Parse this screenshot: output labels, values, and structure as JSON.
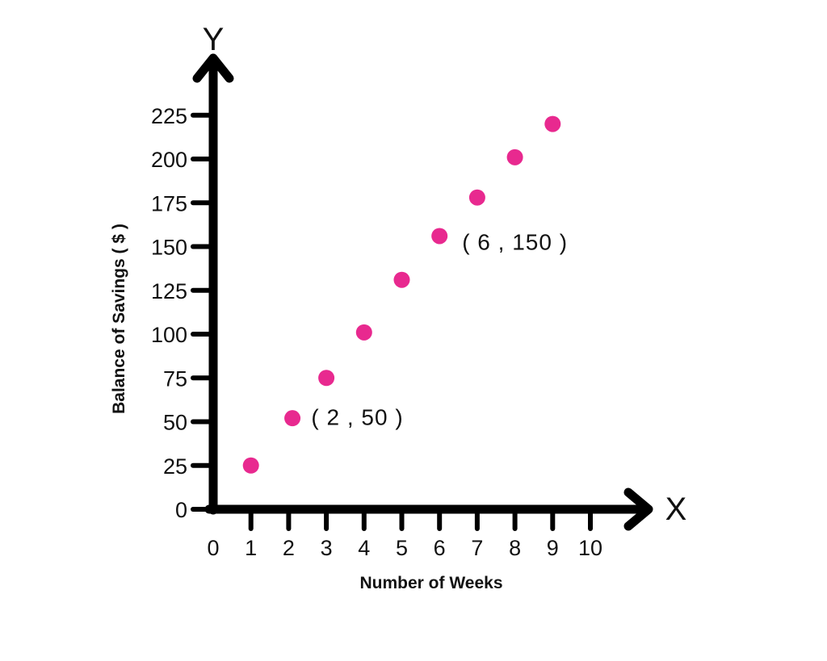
{
  "colors": {
    "point": "#E8298F",
    "axis": "#000000",
    "text": "#111111",
    "background": "#ffffff"
  },
  "chart_data": {
    "type": "scatter",
    "title": "",
    "xlabel": "Number of Weeks",
    "ylabel": "Balance of Savings ( $ )",
    "x_axis_letter": "X",
    "y_axis_letter": "Y",
    "xlim": [
      0,
      10
    ],
    "ylim": [
      0,
      225
    ],
    "x_ticks": [
      "0",
      "1",
      "2",
      "3",
      "4",
      "5",
      "6",
      "7",
      "8",
      "9",
      "10"
    ],
    "y_ticks": [
      "0",
      "25",
      "50",
      "75",
      "100",
      "125",
      "150",
      "175",
      "200",
      "225"
    ],
    "grid": false,
    "legend": "none",
    "points": [
      {
        "x": 1,
        "y": 25
      },
      {
        "x": 2.1,
        "y": 52
      },
      {
        "x": 3,
        "y": 75
      },
      {
        "x": 4,
        "y": 101
      },
      {
        "x": 5,
        "y": 131
      },
      {
        "x": 6,
        "y": 156
      },
      {
        "x": 7,
        "y": 178
      },
      {
        "x": 8,
        "y": 201
      },
      {
        "x": 9,
        "y": 220
      }
    ],
    "annotations": [
      {
        "text": "( 2 , 50 )",
        "x": 2,
        "y": 50
      },
      {
        "text": "( 6 , 150 )",
        "x": 6,
        "y": 150
      }
    ]
  }
}
